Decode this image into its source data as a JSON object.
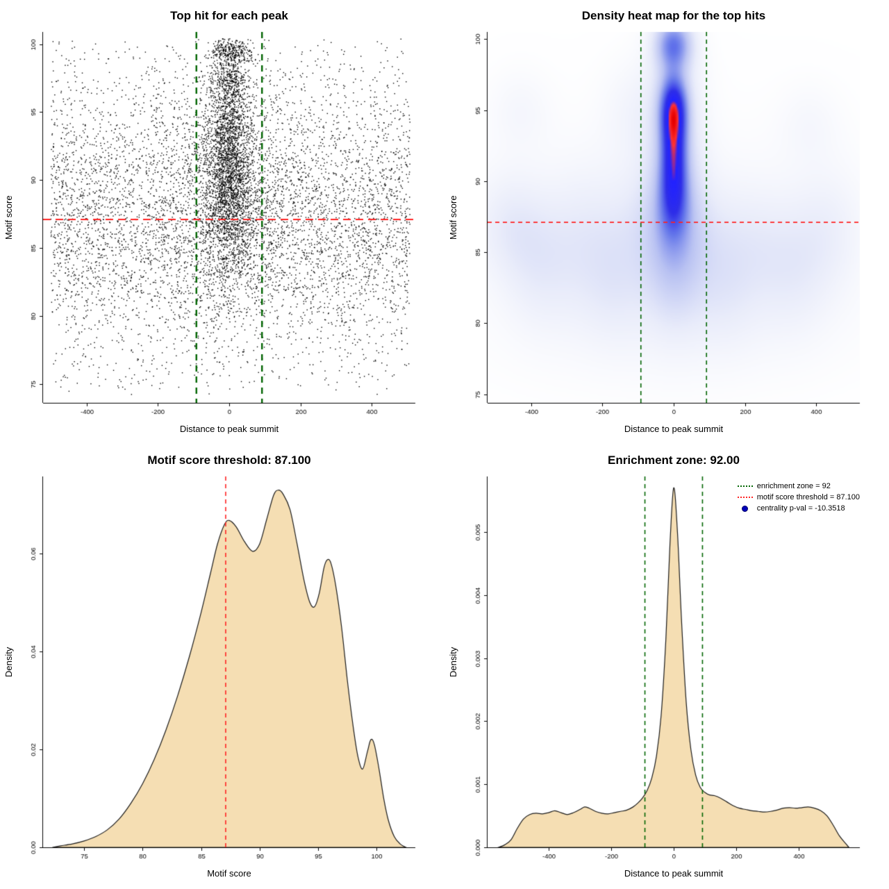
{
  "chart_data": [
    {
      "type": "scatter",
      "title": "Top hit for each peak",
      "xlabel": "Distance to peak summit",
      "ylabel": "Motif score",
      "xlim": [
        -522,
        522
      ],
      "ylim": [
        73.6,
        100.9
      ],
      "xticks": [
        -400,
        -200,
        0,
        200,
        400
      ],
      "xtick_labels": [
        "-400",
        "-200",
        "0",
        "200",
        "400"
      ],
      "yticks": [
        75,
        80,
        85,
        90,
        95,
        100
      ],
      "ytick_labels": [
        "75",
        "80",
        "85",
        "90",
        "95",
        "100"
      ],
      "point_color": "#000000",
      "seed": 42,
      "clusters": [
        {
          "n": 5200,
          "x": {
            "dist": "uniform",
            "min": -500,
            "max": 507
          },
          "y": {
            "dist": "normal",
            "mean": 87.5,
            "sd": 5.2,
            "min": 74.2,
            "max": 100.4
          }
        },
        {
          "n": 600,
          "x": {
            "dist": "uniform",
            "min": -500,
            "max": 507
          },
          "y": {
            "dist": "uniform",
            "min": 74.2,
            "max": 100.4
          }
        },
        {
          "n": 1500,
          "x": {
            "dist": "normal",
            "mean": 0,
            "sd": 36,
            "min": -500,
            "max": 507
          },
          "y": {
            "dist": "normal",
            "mean": 91.3,
            "sd": 2.4,
            "min": 84,
            "max": 100.4
          }
        },
        {
          "n": 420,
          "x": {
            "dist": "normal",
            "mean": 0,
            "sd": 26
          },
          "y": {
            "dist": "normal",
            "mean": 95.1,
            "sd": 1.3
          }
        },
        {
          "n": 380,
          "x": {
            "dist": "normal",
            "mean": 0,
            "sd": 30
          },
          "y": {
            "dist": "normal",
            "mean": 99.4,
            "sd": 0.6,
            "max": 100.4
          }
        },
        {
          "n": 220,
          "x": {
            "dist": "normal",
            "mean": 0,
            "sd": 30
          },
          "y": {
            "dist": "normal",
            "mean": 97.4,
            "sd": 0.5
          }
        },
        {
          "n": 550,
          "x": {
            "dist": "normal",
            "mean": 0,
            "sd": 42
          },
          "y": {
            "dist": "normal",
            "mean": 87.3,
            "sd": 1.8
          }
        },
        {
          "n": 400,
          "x": {
            "dist": "normal",
            "mean": 0,
            "sd": 60
          },
          "y": {
            "dist": "normal",
            "mean": 83.5,
            "sd": 2.6,
            "min": 74.2
          }
        },
        {
          "n": 500,
          "x": {
            "dist": "normal",
            "mean": 0,
            "sd": 120,
            "min": -500,
            "max": 507
          },
          "y": {
            "dist": "normal",
            "mean": 90,
            "sd": 4,
            "min": 74.2,
            "max": 100.4
          }
        }
      ],
      "vlines": [
        {
          "x": -92,
          "color": "#006400",
          "width": 2.4,
          "dash": [
            9,
            7
          ]
        },
        {
          "x": 92,
          "color": "#006400",
          "width": 2.4,
          "dash": [
            9,
            7
          ]
        }
      ],
      "hlines": [
        {
          "y": 87.1,
          "color": "#ff2222",
          "width": 2,
          "dash": [
            11,
            7
          ]
        }
      ]
    },
    {
      "type": "heatmap",
      "title": "Density heat map for the top hits",
      "xlabel": "Distance to peak summit",
      "ylabel": "Motif score",
      "xlim": [
        -522,
        522
      ],
      "ylim": [
        74.4,
        100.5
      ],
      "xticks": [
        -400,
        -200,
        0,
        200,
        400
      ],
      "xtick_labels": [
        "-400",
        "-200",
        "0",
        "200",
        "400"
      ],
      "yticks": [
        75,
        80,
        85,
        90,
        95,
        100
      ],
      "ytick_labels": [
        "75",
        "80",
        "85",
        "90",
        "95",
        "100"
      ],
      "colormap": [
        [
          0,
          "#ffffff"
        ],
        [
          0.12,
          "#e9ecfa"
        ],
        [
          0.3,
          "#b9c2f2"
        ],
        [
          0.5,
          "#6678ea"
        ],
        [
          0.68,
          "#2e2ee8"
        ],
        [
          0.86,
          "#2222ff"
        ],
        [
          0.92,
          "#ff3333"
        ],
        [
          1,
          "#e60000"
        ]
      ],
      "blobs": [
        {
          "x": 0,
          "y": 95.2,
          "sx": 26,
          "sy": 1.6,
          "a": 1.0
        },
        {
          "x": 0,
          "y": 92.0,
          "sx": 24,
          "sy": 2.3,
          "a": 0.97
        },
        {
          "x": 0,
          "y": 99.6,
          "sx": 34,
          "sy": 1.2,
          "a": 0.75
        },
        {
          "x": 0,
          "y": 88.6,
          "sx": 30,
          "sy": 1.9,
          "a": 0.5
        },
        {
          "x": 0,
          "y": 92.0,
          "sx": 55,
          "sy": 6.0,
          "a": 0.33
        },
        {
          "x": 0,
          "y": 84.5,
          "sx": 55,
          "sy": 3.0,
          "a": 0.2
        },
        {
          "x": -70,
          "y": 87.0,
          "sx": 90,
          "sy": 3.0,
          "a": 0.13
        },
        {
          "x": 70,
          "y": 86.0,
          "sx": 90,
          "sy": 3.0,
          "a": 0.12
        },
        {
          "x": -460,
          "y": 87.0,
          "sx": 70,
          "sy": 2.6,
          "a": 0.16
        },
        {
          "x": -380,
          "y": 84.0,
          "sx": 70,
          "sy": 3.0,
          "a": 0.13
        },
        {
          "x": -260,
          "y": 86.0,
          "sx": 80,
          "sy": 3.5,
          "a": 0.14
        },
        {
          "x": -160,
          "y": 83.0,
          "sx": 70,
          "sy": 3.0,
          "a": 0.12
        },
        {
          "x": -120,
          "y": 95.0,
          "sx": 60,
          "sy": 2.5,
          "a": 0.09
        },
        {
          "x": -430,
          "y": 95.0,
          "sx": 60,
          "sy": 2.0,
          "a": 0.08
        },
        {
          "x": 140,
          "y": 82.5,
          "sx": 70,
          "sy": 3.0,
          "a": 0.11
        },
        {
          "x": 240,
          "y": 85.5,
          "sx": 80,
          "sy": 3.0,
          "a": 0.12
        },
        {
          "x": 340,
          "y": 83.5,
          "sx": 70,
          "sy": 3.0,
          "a": 0.11
        },
        {
          "x": 430,
          "y": 86.5,
          "sx": 70,
          "sy": 3.0,
          "a": 0.13
        },
        {
          "x": 380,
          "y": 94.0,
          "sx": 60,
          "sy": 2.0,
          "a": 0.07
        },
        {
          "x": 0,
          "y": 80.0,
          "sx": 300,
          "sy": 3.0,
          "a": 0.06
        },
        {
          "x": 0,
          "y": 86.0,
          "sx": 520,
          "sy": 6.5,
          "a": 0.06
        }
      ],
      "vlines": [
        {
          "x": -92,
          "color": "#006400",
          "width": 1.6,
          "dash": [
            6,
            5
          ]
        },
        {
          "x": 92,
          "color": "#006400",
          "width": 1.6,
          "dash": [
            6,
            5
          ]
        }
      ],
      "hlines": [
        {
          "y": 87.1,
          "color": "#ff2222",
          "width": 1.6,
          "dash": [
            6,
            5
          ]
        }
      ]
    },
    {
      "type": "density",
      "title": "Motif score threshold: 87.100",
      "xlabel": "Motif score",
      "ylabel": "Density",
      "xlim": [
        71.5,
        103.3
      ],
      "ylim": [
        0,
        0.0758
      ],
      "xticks": [
        75,
        80,
        85,
        90,
        95,
        100
      ],
      "xtick_labels": [
        "75",
        "80",
        "85",
        "90",
        "95",
        "100"
      ],
      "yticks": [
        0,
        0.02,
        0.04,
        0.06
      ],
      "ytick_labels": [
        "0.00",
        "0.02",
        "0.04",
        "0.06"
      ],
      "fill": "#f5deb3",
      "line": "#1a1a1a",
      "points": [
        [
          72.3,
          0.0
        ],
        [
          73,
          0.0003
        ],
        [
          74,
          0.0007
        ],
        [
          75,
          0.0013
        ],
        [
          76,
          0.0022
        ],
        [
          77,
          0.0036
        ],
        [
          78,
          0.0058
        ],
        [
          79,
          0.009
        ],
        [
          80,
          0.013
        ],
        [
          81,
          0.018
        ],
        [
          82,
          0.024
        ],
        [
          83,
          0.031
        ],
        [
          84,
          0.039
        ],
        [
          85,
          0.048
        ],
        [
          85.8,
          0.056
        ],
        [
          86.4,
          0.062
        ],
        [
          87,
          0.066
        ],
        [
          87.4,
          0.0668
        ],
        [
          88,
          0.0655
        ],
        [
          88.7,
          0.0625
        ],
        [
          89.4,
          0.0605
        ],
        [
          90,
          0.062
        ],
        [
          90.6,
          0.067
        ],
        [
          91.2,
          0.072
        ],
        [
          91.6,
          0.073
        ],
        [
          92,
          0.0722
        ],
        [
          92.6,
          0.069
        ],
        [
          93.2,
          0.062
        ],
        [
          93.8,
          0.0545
        ],
        [
          94.3,
          0.05
        ],
        [
          94.7,
          0.0492
        ],
        [
          95.1,
          0.052
        ],
        [
          95.5,
          0.0572
        ],
        [
          95.8,
          0.0588
        ],
        [
          96.1,
          0.058
        ],
        [
          96.5,
          0.0535
        ],
        [
          97,
          0.045
        ],
        [
          97.5,
          0.034
        ],
        [
          98,
          0.0245
        ],
        [
          98.4,
          0.0185
        ],
        [
          98.8,
          0.016
        ],
        [
          99.2,
          0.0195
        ],
        [
          99.5,
          0.022
        ],
        [
          99.8,
          0.021
        ],
        [
          100.2,
          0.016
        ],
        [
          100.6,
          0.01
        ],
        [
          101,
          0.0055
        ],
        [
          101.5,
          0.0022
        ],
        [
          102,
          0.0007
        ],
        [
          102.5,
          0.0
        ]
      ],
      "vlines": [
        {
          "x": 87.1,
          "color": "#ff2222",
          "width": 1.6,
          "dash": [
            6,
            5
          ]
        }
      ],
      "hlines": []
    },
    {
      "type": "density",
      "title": "Enrichment zone: 92.00",
      "xlabel": "Distance to peak summit",
      "ylabel": "Density",
      "xlim": [
        -595,
        595
      ],
      "ylim": [
        0,
        0.00588
      ],
      "xticks": [
        -400,
        -200,
        0,
        200,
        400
      ],
      "xtick_labels": [
        "-400",
        "-200",
        "0",
        "200",
        "400"
      ],
      "yticks": [
        0,
        0.001,
        0.002,
        0.003,
        0.004,
        0.005
      ],
      "ytick_labels": [
        "0.000",
        "0.001",
        "0.002",
        "0.003",
        "0.004",
        "0.005"
      ],
      "fill": "#f5deb3",
      "line": "#1a1a1a",
      "points": [
        [
          -560,
          0.0
        ],
        [
          -540,
          4e-05
        ],
        [
          -520,
          0.00012
        ],
        [
          -500,
          0.0003
        ],
        [
          -480,
          0.00045
        ],
        [
          -460,
          0.00052
        ],
        [
          -440,
          0.00054
        ],
        [
          -420,
          0.00053
        ],
        [
          -400,
          0.00055
        ],
        [
          -380,
          0.00058
        ],
        [
          -360,
          0.00055
        ],
        [
          -340,
          0.00052
        ],
        [
          -320,
          0.00055
        ],
        [
          -300,
          0.0006
        ],
        [
          -285,
          0.00064
        ],
        [
          -270,
          0.00062
        ],
        [
          -250,
          0.00057
        ],
        [
          -230,
          0.00054
        ],
        [
          -210,
          0.00053
        ],
        [
          -190,
          0.00055
        ],
        [
          -170,
          0.00057
        ],
        [
          -150,
          0.00059
        ],
        [
          -130,
          0.00064
        ],
        [
          -115,
          0.0007
        ],
        [
          -100,
          0.00078
        ],
        [
          -85,
          0.0009
        ],
        [
          -70,
          0.0011
        ],
        [
          -55,
          0.00145
        ],
        [
          -40,
          0.0021
        ],
        [
          -25,
          0.0033
        ],
        [
          -12,
          0.0048
        ],
        [
          0,
          0.0057
        ],
        [
          12,
          0.005
        ],
        [
          25,
          0.0036
        ],
        [
          40,
          0.0023
        ],
        [
          55,
          0.00155
        ],
        [
          70,
          0.00115
        ],
        [
          85,
          0.00095
        ],
        [
          100,
          0.00087
        ],
        [
          115,
          0.00083
        ],
        [
          130,
          0.00082
        ],
        [
          150,
          0.00078
        ],
        [
          170,
          0.00072
        ],
        [
          190,
          0.00066
        ],
        [
          210,
          0.00062
        ],
        [
          230,
          0.0006
        ],
        [
          250,
          0.00058
        ],
        [
          270,
          0.00057
        ],
        [
          290,
          0.00056
        ],
        [
          310,
          0.00057
        ],
        [
          330,
          0.00059
        ],
        [
          350,
          0.00062
        ],
        [
          370,
          0.00063
        ],
        [
          390,
          0.00062
        ],
        [
          410,
          0.00063
        ],
        [
          430,
          0.00064
        ],
        [
          450,
          0.00062
        ],
        [
          470,
          0.00058
        ],
        [
          490,
          0.0005
        ],
        [
          510,
          0.00035
        ],
        [
          530,
          0.00018
        ],
        [
          550,
          6e-05
        ],
        [
          560,
          0.0
        ]
      ],
      "vlines": [
        {
          "x": -92,
          "color": "#006400",
          "width": 1.6,
          "dash": [
            6,
            5
          ]
        },
        {
          "x": 92,
          "color": "#006400",
          "width": 1.6,
          "dash": [
            6,
            5
          ]
        }
      ],
      "hlines": [],
      "legend": [
        {
          "label": "enrichment zone = 92",
          "color": "#006400",
          "marker": "dotted-line"
        },
        {
          "label": "motif score threshold = 87.100",
          "color": "#ff2222",
          "marker": "dotted-line"
        },
        {
          "label": "centrality p-val = -10.3518",
          "color": "#0000bb",
          "marker": "dot"
        }
      ]
    }
  ]
}
